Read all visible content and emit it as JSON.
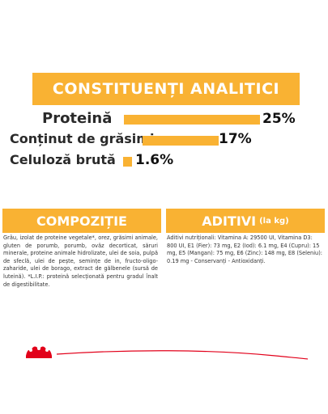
{
  "analytics": {
    "title": "CONSTITUENȚI ANALITICI",
    "rows": [
      {
        "label": "Proteină",
        "value": "25%",
        "percent": 25
      },
      {
        "label": "Conținut de grăsimi",
        "value": "17%",
        "percent": 17
      },
      {
        "label": "Celuloză brută",
        "value": "1.6%",
        "percent": 1.6
      }
    ]
  },
  "composition": {
    "title": "COMPOZIȚIE",
    "text": "Grâu, izolat de proteine vegetale*, orez, grăsimi animale, gluten de porumb, porumb, ovăz decorticat, săruri minerale, proteine animale hidrolizate, ulei de soia, pulpă de sfeclă, ulei de pește, semințe de in, fructo-oligo-zaharide, ulei de borago, extract de gălbenele (sursă de luteină). *L.I.P.: proteină selecționată pentru gradul înalt de digestibilitate."
  },
  "additives": {
    "title": "ADITIVI",
    "unit": "(la kg)",
    "text": "Aditivi nutriționali: Vitamina A: 29500 UI, Vitamina D3: 800 UI, E1 (Fier): 73 mg, E2 (Iod): 6.1 mg, E4 (Cupru): 15 mg, E5 (Mangan): 75 mg, E6 (Zinc): 148 mg, E8 (Seleniu): 0.19 mg - Conservanți - Antioxidanți."
  },
  "colors": {
    "accent": "#f9b233",
    "brand_red": "#e2001a"
  }
}
